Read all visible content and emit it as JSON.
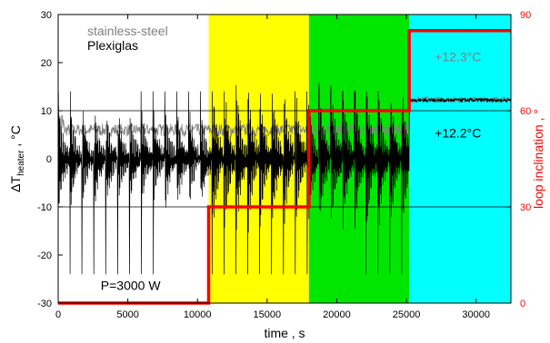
{
  "chart_data": {
    "type": "line",
    "x_axis": {
      "label": "time , s",
      "range": [
        0,
        32500
      ],
      "ticks": [
        0,
        5000,
        10000,
        15000,
        20000,
        25000,
        30000
      ]
    },
    "y_left": {
      "label_prefix": "ΔT",
      "label_sub": "heater",
      "label_suffix": " , °C",
      "range": [
        -30,
        30
      ],
      "ticks": [
        -30,
        -20,
        -10,
        0,
        10,
        20,
        30
      ]
    },
    "y_right": {
      "label": "loop inclination , °",
      "range": [
        0,
        90
      ],
      "ticks": [
        0,
        30,
        60,
        90
      ],
      "color": "#ff0000"
    },
    "gridlines_left": [
      -10,
      10
    ],
    "background_bands": [
      {
        "x_start": 0,
        "x_end": 10800,
        "color": "#ffffff"
      },
      {
        "x_start": 10800,
        "x_end": 18000,
        "color": "#ffff00"
      },
      {
        "x_start": 18000,
        "x_end": 25200,
        "color": "#00e600"
      },
      {
        "x_start": 25200,
        "x_end": 32500,
        "color": "#00ffff"
      }
    ],
    "series": [
      {
        "name": "stainless-steel",
        "color": "#808080",
        "description_levels": [
          {
            "x_start": 0,
            "x_end": 25200,
            "mean": 6
          },
          {
            "x_start": 25200,
            "x_end": 32500,
            "mean": 12.3
          }
        ]
      },
      {
        "name": "Plexiglas",
        "color": "#000000",
        "description_levels": [
          {
            "x_start": 0,
            "x_end": 25200,
            "mean": 0
          },
          {
            "x_start": 25200,
            "x_end": 32500,
            "mean": 12.2
          }
        ]
      },
      {
        "name": "loop inclination",
        "axis": "right",
        "color": "#ff0000",
        "x": [
          0,
          10800,
          10800,
          18000,
          18000,
          25200,
          25200,
          32500
        ],
        "y": [
          0,
          0,
          30,
          30,
          60,
          60,
          85,
          85
        ]
      }
    ],
    "annotations": [
      {
        "text": "+12.3°C",
        "color": "#808080",
        "x": 28700,
        "y": 20.3
      },
      {
        "text": "+12.2°C",
        "color": "#000000",
        "x": 28700,
        "y": 4.4
      },
      {
        "text": "P=3000 W",
        "color": "#000000",
        "x": 5200,
        "y": -27.3
      }
    ]
  }
}
